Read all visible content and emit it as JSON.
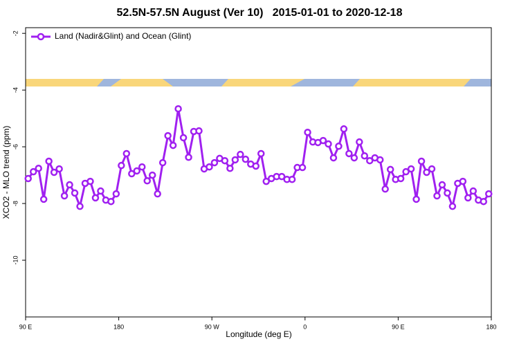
{
  "chart_data": {
    "type": "line",
    "title": "52.5N-57.5N August (Ver 10)   2015-01-01 to 2020-12-18",
    "x_label": "Longitude (deg E)",
    "y_label": "XCO2 - MLO trend (ppm)",
    "xlim": [
      90,
      540
    ],
    "ylim": [
      -12,
      -1.8
    ],
    "xticks": [
      {
        "value": 90,
        "label": "90 E"
      },
      {
        "value": 180,
        "label": "180"
      },
      {
        "value": 270,
        "label": "90 W"
      },
      {
        "value": 360,
        "label": "0"
      },
      {
        "value": 450,
        "label": "90 E"
      },
      {
        "value": 540,
        "label": "180"
      }
    ],
    "yticks": [
      -2,
      -4,
      -6,
      -8,
      -10
    ],
    "legend": "top-left",
    "x": [
      92.5,
      97.5,
      102.5,
      107.5,
      112.5,
      117.5,
      122.5,
      127.5,
      132.5,
      137.5,
      142.5,
      147.5,
      152.5,
      157.5,
      162.5,
      167.5,
      172.5,
      177.5,
      182.5,
      187.5,
      192.5,
      197.5,
      202.5,
      207.5,
      212.5,
      217.5,
      222.5,
      227.5,
      232.5,
      237.5,
      242.5,
      247.5,
      252.5,
      257.5,
      262.5,
      267.5,
      272.5,
      277.5,
      282.5,
      287.5,
      292.5,
      297.5,
      302.5,
      307.5,
      312.5,
      317.5,
      322.5,
      327.5,
      332.5,
      337.5,
      342.5,
      347.5,
      352.5,
      357.5,
      362.5,
      367.5,
      372.5,
      377.5,
      382.5,
      387.5,
      392.5,
      397.5,
      402.5,
      407.5,
      412.5,
      417.5,
      422.5,
      427.5,
      432.5,
      437.5,
      442.5,
      447.5,
      452.5,
      457.5,
      462.5,
      467.5,
      472.5,
      477.5,
      482.5,
      487.5,
      492.5,
      497.5,
      502.5,
      507.5,
      512.5,
      517.5,
      522.5,
      527.5,
      532.5,
      537.5
    ],
    "series": [
      {
        "name": "Land (Nadir&Glint) and Ocean (Glint)",
        "color": "#a020f0",
        "values": [
          -7.12,
          -6.88,
          -6.76,
          -7.85,
          -6.51,
          -6.9,
          -6.78,
          -7.73,
          -7.34,
          -7.63,
          -8.1,
          -7.29,
          -7.22,
          -7.8,
          -7.56,
          -7.88,
          -7.93,
          -7.66,
          -6.66,
          -6.24,
          -6.95,
          -6.85,
          -6.71,
          -7.2,
          -7.0,
          -7.66,
          -6.56,
          -5.61,
          -5.95,
          -4.66,
          -5.68,
          -6.37,
          -5.46,
          -5.44,
          -6.78,
          -6.71,
          -6.56,
          -6.41,
          -6.49,
          -6.76,
          -6.46,
          -6.27,
          -6.44,
          -6.61,
          -6.68,
          -6.24,
          -7.22,
          -7.12,
          -7.05,
          -7.05,
          -7.15,
          -7.15,
          -6.73,
          -6.73,
          -5.49,
          -5.83,
          -5.85,
          -5.78,
          -5.9,
          -6.39,
          -5.98,
          -5.37,
          -6.24,
          -6.39,
          -5.83,
          -6.32,
          -6.49,
          -6.39,
          -6.46,
          -7.49,
          -6.8,
          -7.15,
          -7.12,
          -6.88,
          -6.78,
          -7.85,
          -6.51,
          -6.9,
          -6.78,
          -7.73,
          -7.34,
          -7.63,
          -8.1,
          -7.29,
          -7.22,
          -7.8,
          -7.56,
          -7.88,
          -7.93,
          -7.66
        ]
      }
    ]
  }
}
